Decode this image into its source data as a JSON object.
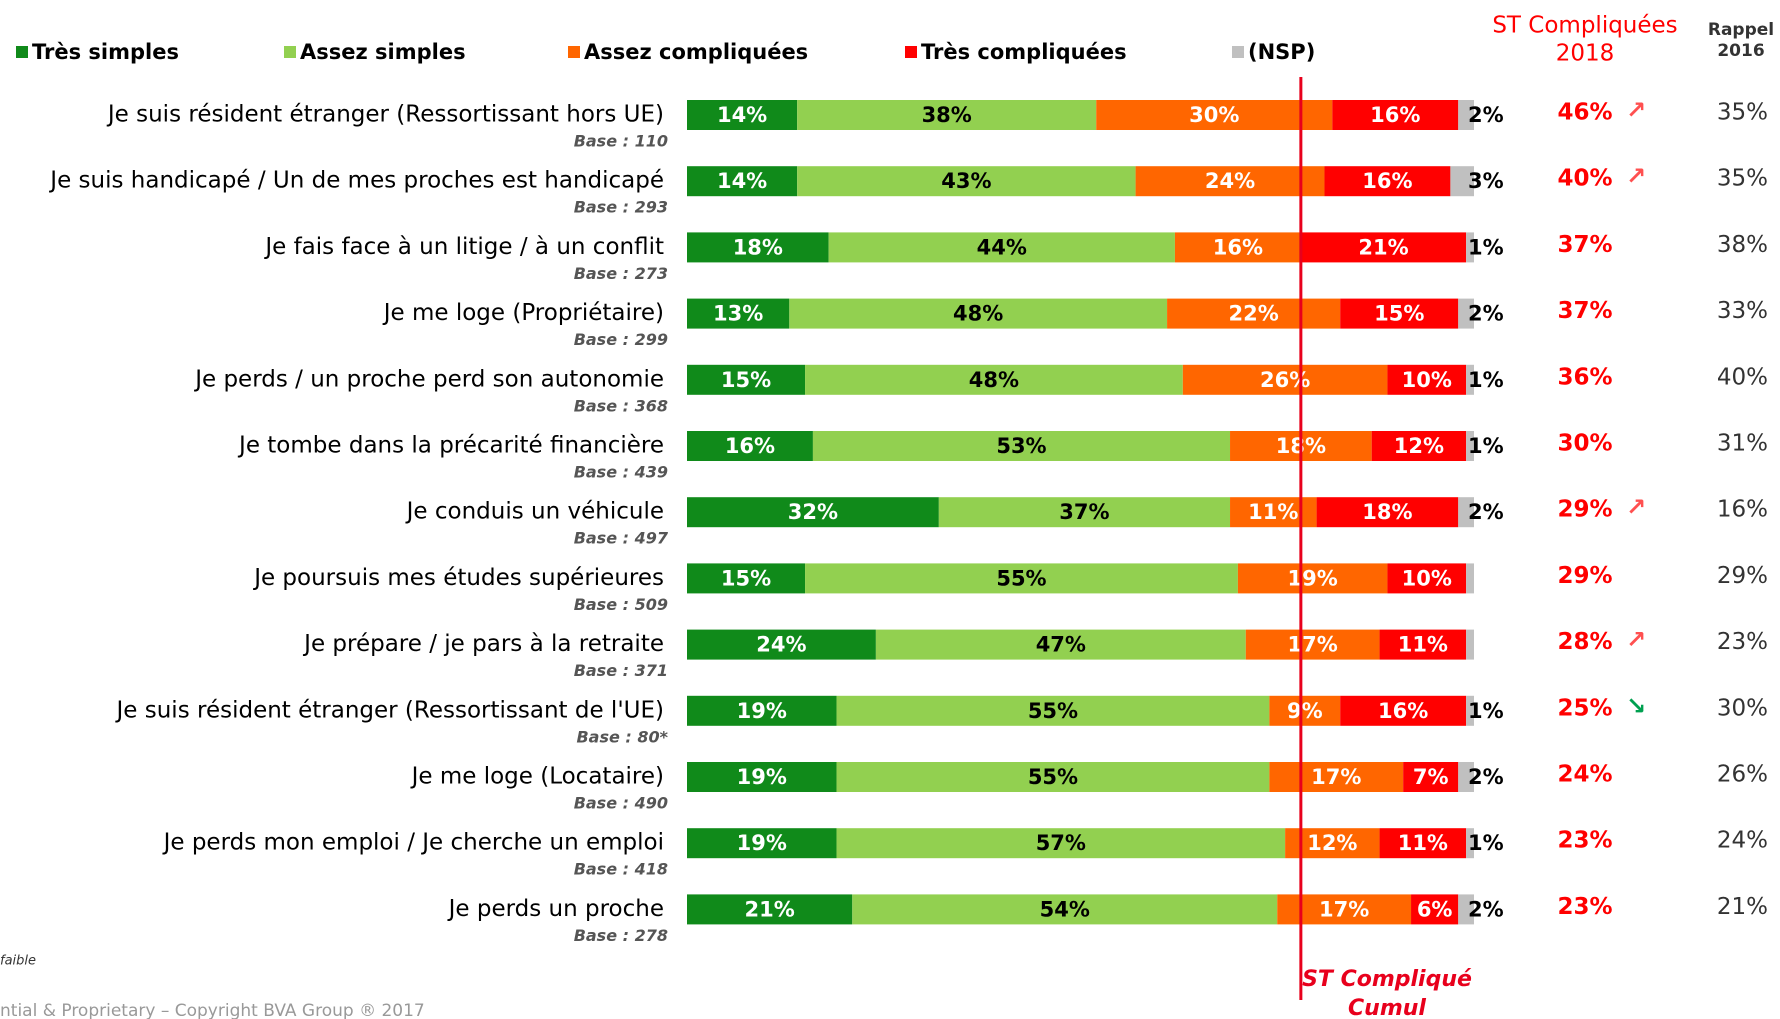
{
  "chart_data": {
    "type": "bar",
    "orientation": "horizontal",
    "stacked": true,
    "legend": "top",
    "xlim": [
      0,
      100
    ],
    "categories": [
      "Je suis résident étranger (Ressortissant hors UE)",
      "Je suis handicapé / Un de mes proches est handicapé",
      "Je fais face à un litige / à un conflit",
      "Je me loge (Propriétaire)",
      "Je perds / un proche perd son autonomie",
      "Je tombe dans la précarité financière",
      "Je conduis un véhicule",
      "Je poursuis mes études supérieures",
      "Je prépare / je pars à la retraite",
      "Je suis résident étranger (Ressortissant de l'UE)",
      "Je me loge (Locataire)",
      "Je perds mon emploi / Je cherche un emploi",
      "Je perds un proche"
    ],
    "bases": [
      "Base : 110",
      "Base : 293",
      "Base : 273",
      "Base : 299",
      "Base : 368",
      "Base : 439",
      "Base : 497",
      "Base : 509",
      "Base : 371",
      "Base : 80*",
      "Base : 490",
      "Base : 418",
      "Base : 278"
    ],
    "series": [
      {
        "name": "Très simples",
        "color": "#108a1a",
        "label_color": "#ffffff",
        "values": [
          14,
          14,
          18,
          13,
          15,
          16,
          32,
          15,
          24,
          19,
          19,
          19,
          21
        ],
        "value_labels": [
          "14%",
          "14%",
          "18%",
          "13%",
          "15%",
          "16%",
          "32%",
          "15%",
          "24%",
          "19%",
          "19%",
          "19%",
          "21%"
        ]
      },
      {
        "name": "Assez simples",
        "color": "#92d050",
        "label_color": "#000000",
        "values": [
          38,
          43,
          44,
          48,
          48,
          53,
          37,
          55,
          47,
          55,
          55,
          57,
          54
        ],
        "value_labels": [
          "38%",
          "43%",
          "44%",
          "48%",
          "48%",
          "53%",
          "37%",
          "55%",
          "47%",
          "55%",
          "55%",
          "57%",
          "54%"
        ]
      },
      {
        "name": "Assez compliquées",
        "color": "#ff6600",
        "label_color": "#ffffff",
        "values": [
          30,
          24,
          16,
          22,
          26,
          18,
          11,
          19,
          17,
          9,
          17,
          12,
          17
        ],
        "value_labels": [
          "30%",
          "24%",
          "16%",
          "22%",
          "26%",
          "18%",
          "11%",
          "19%",
          "17%",
          "9%",
          "17%",
          "12%",
          "17%"
        ]
      },
      {
        "name": "Très compliquées",
        "color": "#ff0000",
        "label_color": "#ffffff",
        "values": [
          16,
          16,
          21,
          15,
          10,
          12,
          18,
          10,
          11,
          16,
          7,
          11,
          6
        ],
        "value_labels": [
          "16%",
          "16%",
          "21%",
          "15%",
          "10%",
          "12%",
          "18%",
          "10%",
          "11%",
          "16%",
          "7%",
          "11%",
          "6%"
        ]
      },
      {
        "name": "(NSP)",
        "color": "#c0c0c0",
        "label_color": "#000000",
        "values": [
          2,
          3,
          1,
          2,
          1,
          1,
          2,
          1,
          1,
          1,
          2,
          1,
          2
        ],
        "value_labels": [
          "2%",
          "3%",
          "1%",
          "2%",
          "1%",
          "1%",
          "2%",
          null,
          null,
          "1%",
          "2%",
          "1%",
          "2%"
        ]
      }
    ],
    "st_header": [
      "ST Compliquées",
      "2018"
    ],
    "st_2018": [
      "46%",
      "40%",
      "37%",
      "37%",
      "36%",
      "30%",
      "29%",
      "29%",
      "28%",
      "25%",
      "24%",
      "23%",
      "23%"
    ],
    "trends": [
      "↗",
      "↗",
      null,
      null,
      null,
      null,
      "↗",
      null,
      "↗",
      "↘",
      null,
      null,
      null
    ],
    "trend_colors": {
      "↗": "#ff5050",
      "↘": "#00a050"
    },
    "rappel_header": [
      "Rappel",
      "2016"
    ],
    "rappel_2016": [
      "35%",
      "35%",
      "38%",
      "33%",
      "40%",
      "31%",
      "16%",
      "29%",
      "23%",
      "30%",
      "26%",
      "24%",
      "21%"
    ],
    "reference_line": {
      "value": 78,
      "color": "#e8001c",
      "label": [
        "ST Compliqué",
        "Cumul"
      ]
    },
    "footnote": "faible",
    "copyright": "ntial & Proprietary – Copyright BVA Group ®  2017"
  }
}
